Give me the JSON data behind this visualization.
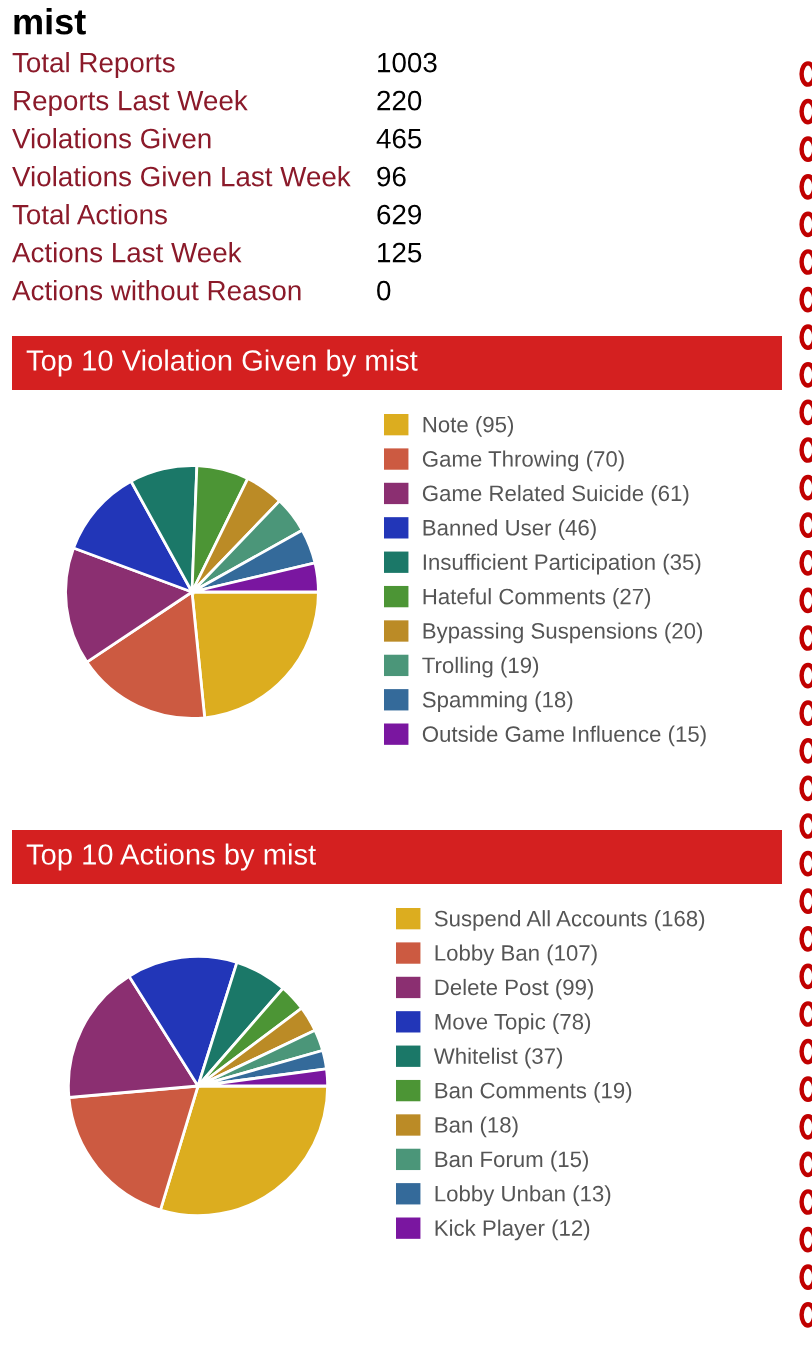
{
  "chart_data": [
    {
      "type": "other",
      "title": "mist",
      "annotations": [
        "Total Reports",
        "1003",
        "Reports Last Week",
        "220",
        "Violations Given",
        "465",
        "Violations Given Last Week",
        "96",
        "Total Actions",
        "629",
        "Actions Last Week",
        "125",
        "Actions without Reason",
        "0"
      ]
    },
    {
      "type": "pie",
      "title": "Top 10 Violation Given by mist",
      "legend": "right",
      "categories": [
        "Note (95)",
        "Game Throwing (70)",
        "Game Related Suicide (61)",
        "Banned User (46)",
        "Insufficient Participation (35)",
        "Hateful Comments (27)",
        "Bypassing Suspensions (20)",
        "Trolling (19)",
        "Spamming (18)",
        "Outside Game Influence (15)"
      ],
      "values": [
        95,
        70,
        61,
        46,
        35,
        27,
        20,
        19,
        18,
        15
      ],
      "colors": [
        "#dcad1f",
        "#cc5a41",
        "#8b2f71",
        "#2236b8",
        "#1b7868",
        "#4c9535",
        "#bb8b26",
        "#4b9679",
        "#346a9a",
        "#7a16a0"
      ]
    },
    {
      "type": "pie",
      "title": "Top 10 Actions by mist",
      "legend": "right",
      "categories": [
        "Suspend All Accounts (168)",
        "Lobby Ban (107)",
        "Delete Post (99)",
        "Move Topic (78)",
        "Whitelist (37)",
        "Ban Comments (19)",
        "Ban (18)",
        "Ban Forum (15)",
        "Lobby Unban (13)",
        "Kick Player (12)"
      ],
      "values": [
        168,
        107,
        99,
        78,
        37,
        19,
        18,
        15,
        13,
        12
      ],
      "colors": [
        "#dcad1f",
        "#cc5a41",
        "#8b2f71",
        "#2236b8",
        "#1b7868",
        "#4c9535",
        "#bb8b26",
        "#4b9679",
        "#346a9a",
        "#7a16a0"
      ]
    }
  ]
}
